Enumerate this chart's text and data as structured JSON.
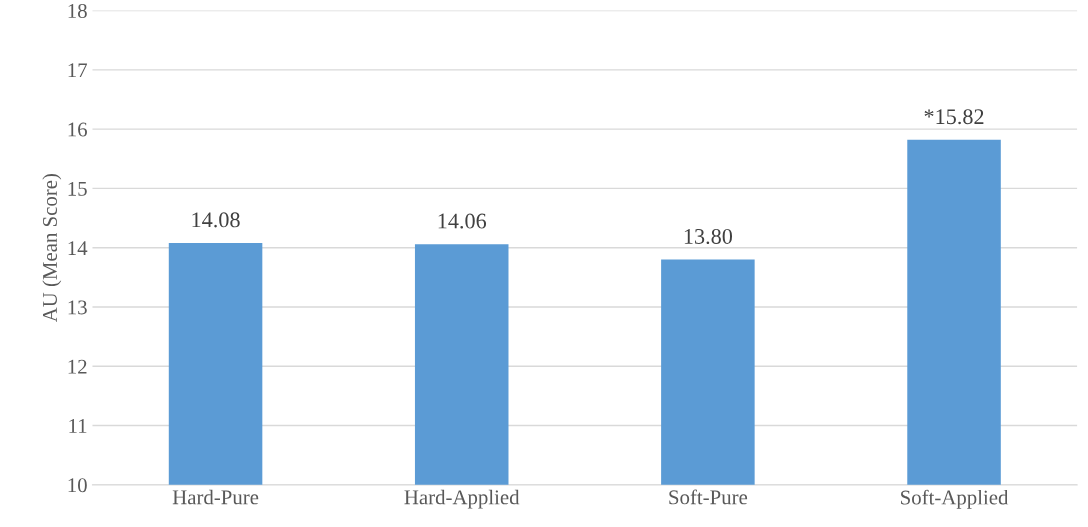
{
  "chart_data": {
    "type": "bar",
    "ylabel": "AU (Mean Score)",
    "categories": [
      "Hard-Pure",
      "Hard-Applied",
      "Soft-Pure",
      "Soft-Applied"
    ],
    "values": [
      14.08,
      14.06,
      13.8,
      15.82
    ],
    "value_labels": [
      "14.08",
      "14.06",
      "13.80",
      "*15.82"
    ],
    "color": "#5b9bd5",
    "ylim": [
      10,
      18
    ],
    "yticks": [
      10,
      11,
      12,
      13,
      14,
      15,
      16,
      17,
      18
    ],
    "grid": "y",
    "legend": false
  }
}
